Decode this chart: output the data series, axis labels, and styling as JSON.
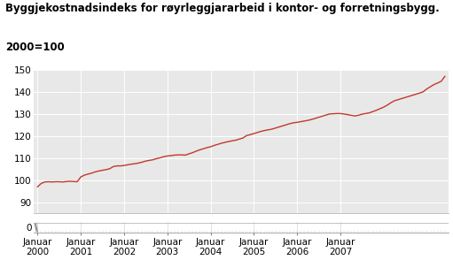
{
  "title_line1": "Byggjekostnadsindeks for røyrleggjararbeid i kontor- og forretningsbygg.",
  "title_line2": "2000=100",
  "line_color": "#c0392b",
  "background_color": "#ffffff",
  "plot_bg_color": "#e8e8e8",
  "grid_color": "#ffffff",
  "values": [
    97.0,
    98.5,
    99.2,
    99.3,
    99.2,
    99.3,
    99.3,
    99.2,
    99.4,
    99.5,
    99.4,
    99.3,
    101.5,
    102.3,
    102.8,
    103.2,
    103.8,
    104.2,
    104.5,
    104.8,
    105.2,
    106.2,
    106.5,
    106.5,
    106.7,
    107.0,
    107.3,
    107.5,
    107.8,
    108.2,
    108.7,
    109.0,
    109.3,
    109.8,
    110.2,
    110.7,
    111.0,
    111.2,
    111.4,
    111.5,
    111.5,
    111.4,
    112.0,
    112.5,
    113.2,
    113.8,
    114.3,
    114.8,
    115.2,
    115.8,
    116.3,
    116.8,
    117.2,
    117.6,
    117.9,
    118.2,
    118.7,
    119.2,
    120.3,
    120.7,
    121.2,
    121.7,
    122.2,
    122.6,
    122.9,
    123.2,
    123.7,
    124.2,
    124.7,
    125.2,
    125.7,
    126.1,
    126.3,
    126.6,
    126.9,
    127.2,
    127.6,
    128.1,
    128.6,
    129.1,
    129.6,
    130.1,
    130.2,
    130.3,
    130.3,
    130.1,
    129.8,
    129.5,
    129.2,
    129.5,
    130.0,
    130.3,
    130.6,
    131.2,
    131.8,
    132.5,
    133.2,
    134.1,
    135.2,
    136.1,
    136.6,
    137.1,
    137.6,
    138.1,
    138.6,
    139.1,
    139.6,
    140.2,
    141.5,
    142.5,
    143.5,
    144.2,
    145.0,
    147.2
  ],
  "x_tick_positions": [
    0,
    12,
    24,
    36,
    48,
    60,
    72,
    84
  ],
  "x_tick_labels": [
    "Januar\n2000",
    "Januar\n2001",
    "Januar\n2002",
    "Januar\n2003",
    "Januar\n2004",
    "Januar\n2005",
    "Januar\n2006",
    "Januar\n2007"
  ],
  "yticks_main": [
    90,
    100,
    110,
    120,
    130,
    140,
    150
  ],
  "ytick_zero": 0,
  "ymin_main": 85,
  "ymax_main": 150,
  "title_fontsize": 8.5,
  "tick_fontsize": 7.5
}
